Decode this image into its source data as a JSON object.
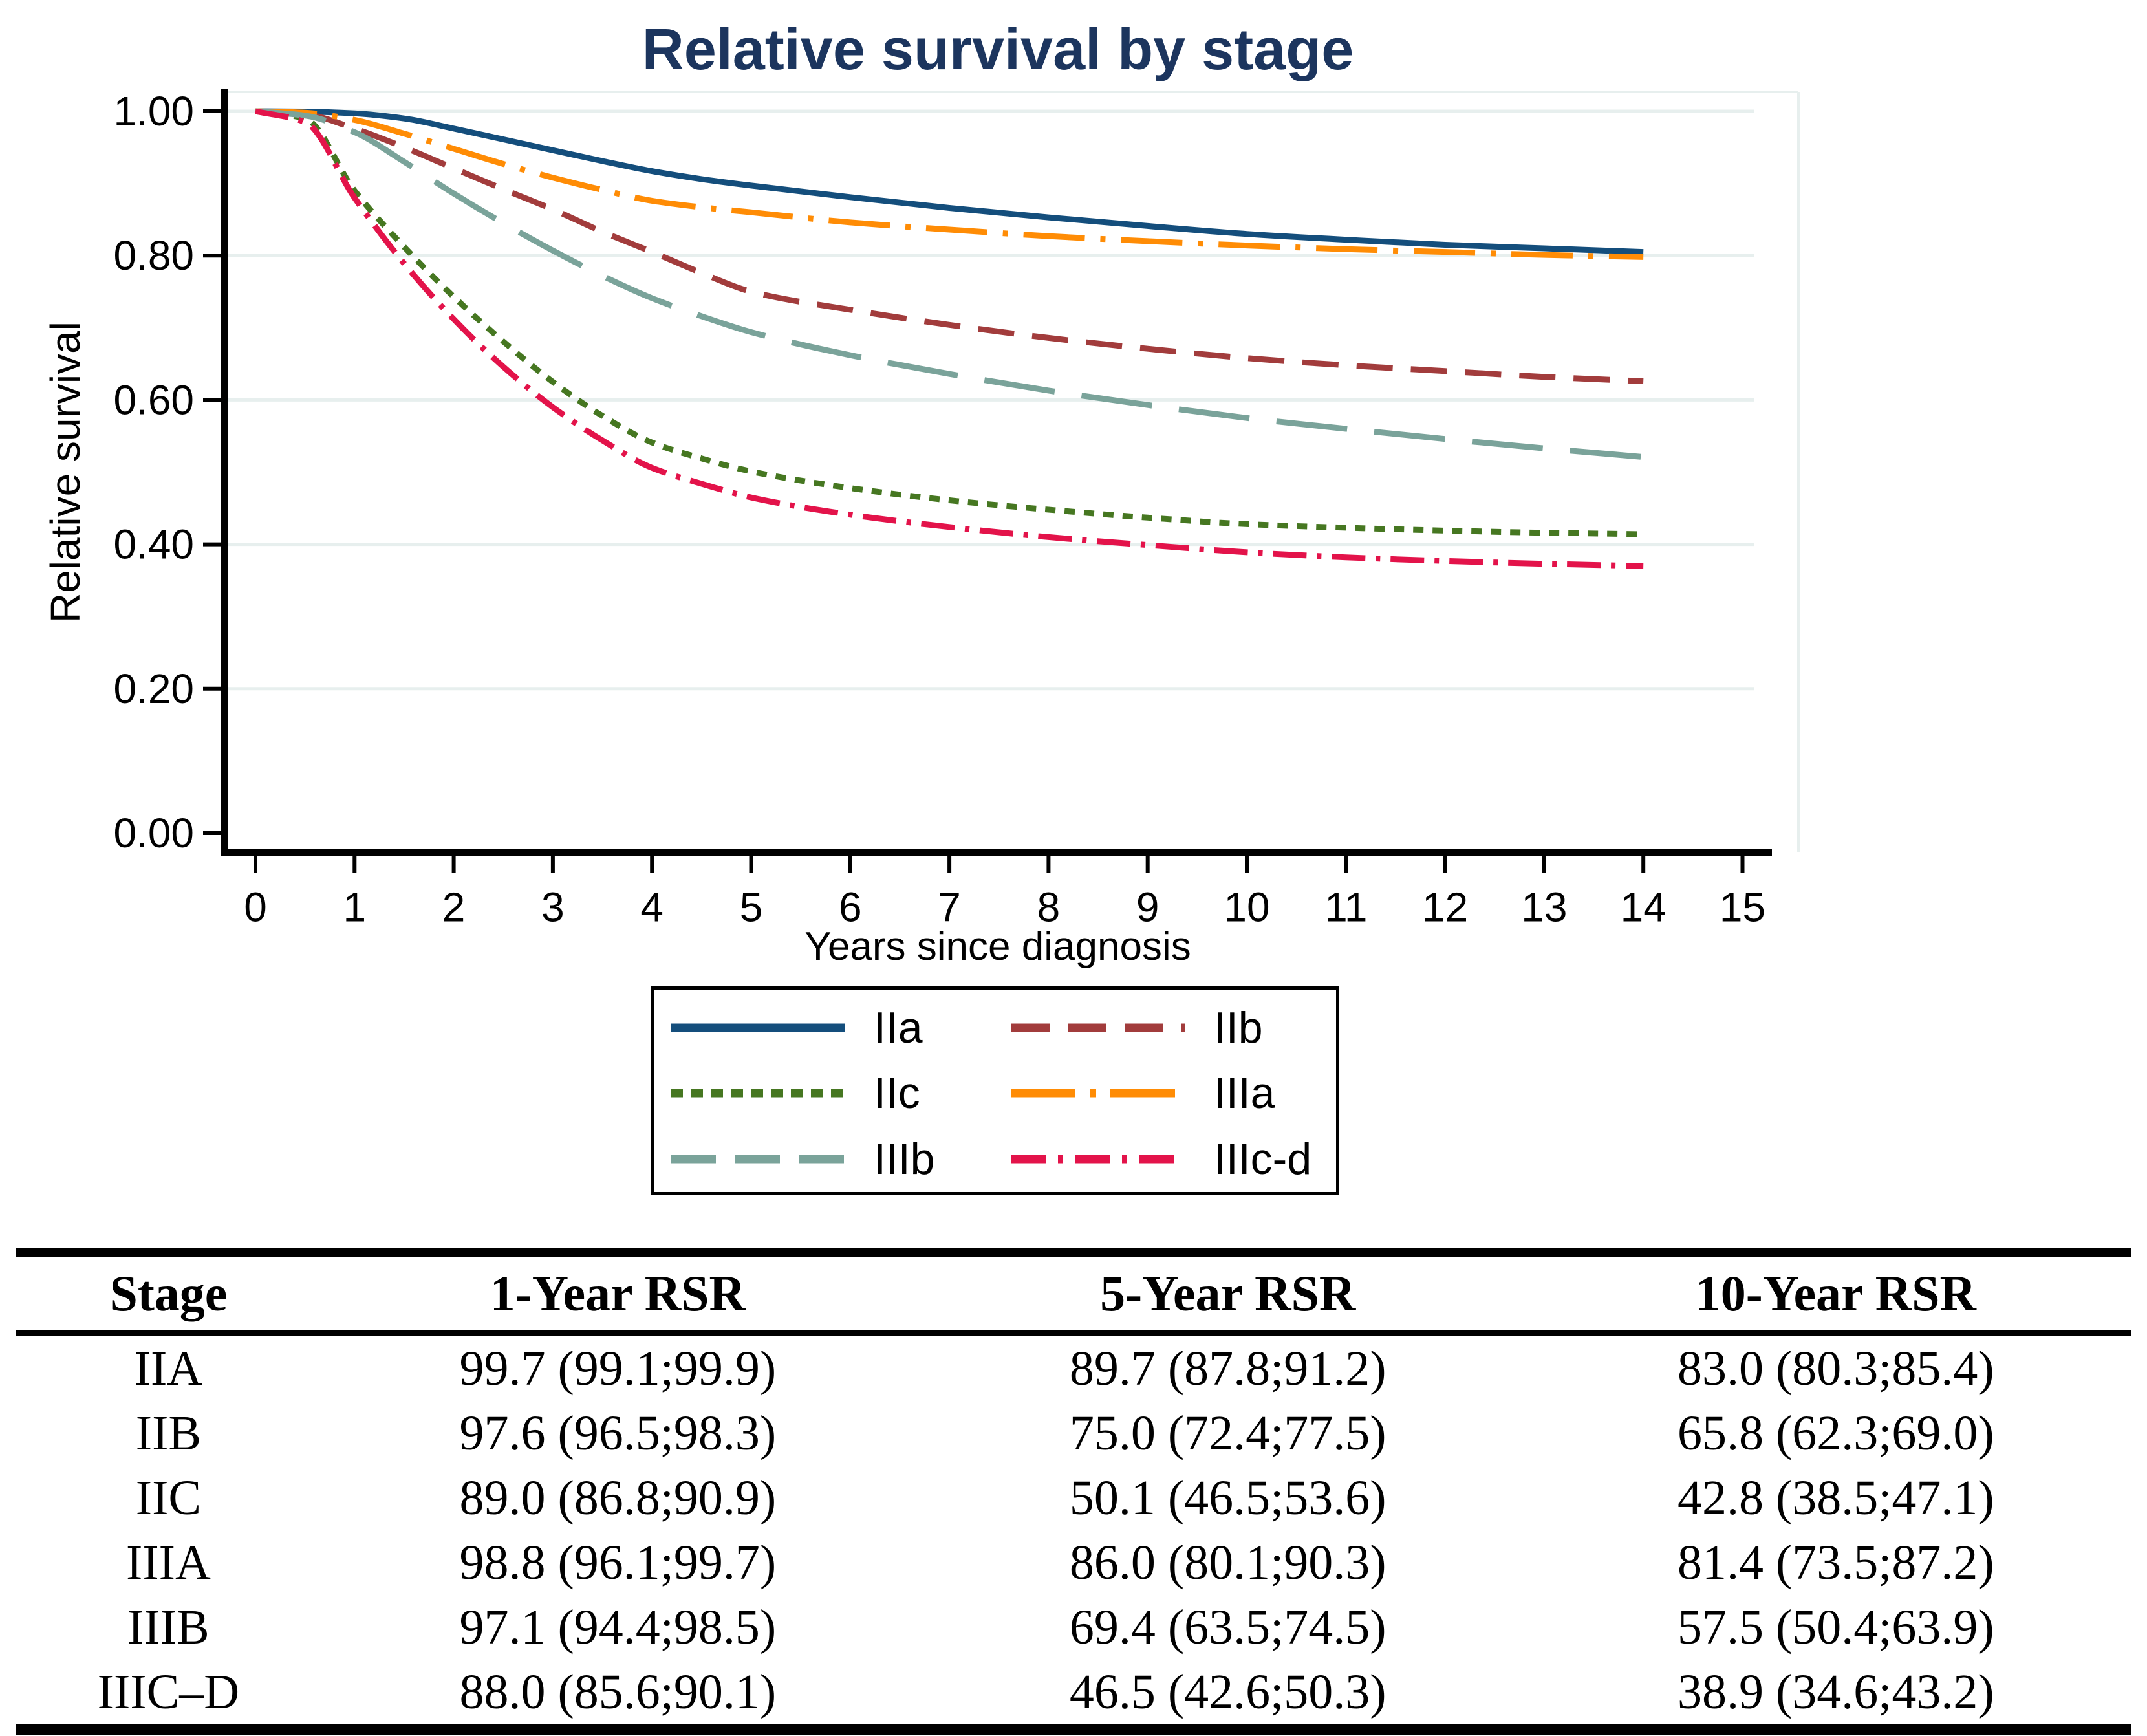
{
  "chart_data": {
    "type": "line",
    "title": "Relative survival by stage",
    "title_color": "#1c355e",
    "xlabel": "Years since diagnosis",
    "ylabel": "Relative survival",
    "xlim": [
      0,
      15
    ],
    "ylim": [
      0,
      1
    ],
    "grid": "horizontal",
    "grid_color": "#e7efee",
    "axis_color": "#000000",
    "x_ticks": [
      "0",
      "1",
      "2",
      "3",
      "4",
      "5",
      "6",
      "7",
      "8",
      "9",
      "10",
      "11",
      "12",
      "13",
      "14",
      "15"
    ],
    "y_ticks": [
      {
        "v": 0.0,
        "label": "0.00"
      },
      {
        "v": 0.2,
        "label": "0.20"
      },
      {
        "v": 0.4,
        "label": "0.40"
      },
      {
        "v": 0.6,
        "label": "0.60"
      },
      {
        "v": 0.8,
        "label": "0.80"
      },
      {
        "v": 1.0,
        "label": "1.00"
      }
    ],
    "x": [
      0,
      0.5,
      1,
      1.5,
      2,
      2.5,
      3,
      3.5,
      4,
      4.5,
      5,
      6,
      7,
      8,
      9,
      10,
      11,
      12,
      13,
      14
    ],
    "series": [
      {
        "name": "IIa",
        "color": "#144e7c",
        "dash": "solid",
        "y": [
          1.0,
          0.9995,
          0.997,
          0.99,
          0.976,
          0.961,
          0.946,
          0.931,
          0.917,
          0.906,
          0.897,
          0.881,
          0.866,
          0.853,
          0.841,
          0.83,
          0.822,
          0.815,
          0.81,
          0.805
        ]
      },
      {
        "name": "IIb",
        "color": "#a23c3c",
        "dash": "dash",
        "y": [
          1.0,
          0.996,
          0.976,
          0.95,
          0.921,
          0.892,
          0.864,
          0.833,
          0.805,
          0.776,
          0.75,
          0.725,
          0.704,
          0.686,
          0.671,
          0.658,
          0.648,
          0.64,
          0.632,
          0.626
        ]
      },
      {
        "name": "IIc",
        "color": "#467721",
        "dash": "dot",
        "y": [
          1.0,
          0.99,
          0.89,
          0.812,
          0.743,
          0.681,
          0.625,
          0.578,
          0.541,
          0.519,
          0.501,
          0.478,
          0.461,
          0.448,
          0.437,
          0.428,
          0.423,
          0.419,
          0.416,
          0.414
        ]
      },
      {
        "name": "IIIa",
        "color": "#ff8c05",
        "dash": "longdash-dot",
        "y": [
          1.0,
          0.998,
          0.988,
          0.969,
          0.948,
          0.927,
          0.908,
          0.891,
          0.876,
          0.867,
          0.86,
          0.846,
          0.836,
          0.827,
          0.82,
          0.814,
          0.809,
          0.805,
          0.801,
          0.798
        ]
      },
      {
        "name": "IIIb",
        "color": "#7aa39a",
        "dash": "longdash",
        "y": [
          1.0,
          0.994,
          0.971,
          0.93,
          0.886,
          0.845,
          0.807,
          0.772,
          0.741,
          0.716,
          0.694,
          0.662,
          0.636,
          0.613,
          0.593,
          0.575,
          0.56,
          0.546,
          0.533,
          0.521
        ]
      },
      {
        "name": "IIIc-d",
        "color": "#e3134a",
        "dash": "dash-dot",
        "y": [
          1.0,
          0.985,
          0.88,
          0.789,
          0.712,
          0.646,
          0.59,
          0.544,
          0.506,
          0.484,
          0.465,
          0.441,
          0.424,
          0.41,
          0.399,
          0.389,
          0.382,
          0.377,
          0.373,
          0.37
        ]
      }
    ],
    "legend": {
      "position": "below-plot",
      "rows": [
        [
          "IIa",
          "IIb"
        ],
        [
          "IIc",
          "IIIa"
        ],
        [
          "IIIb",
          "IIIc-d"
        ]
      ]
    }
  },
  "table": {
    "headers": [
      "Stage",
      "1-Year RSR",
      "5-Year RSR",
      "10-Year RSR"
    ],
    "rows": [
      [
        "IIA",
        "99.7 (99.1;99.9)",
        "89.7 (87.8;91.2)",
        "83.0 (80.3;85.4)"
      ],
      [
        "IIB",
        "97.6 (96.5;98.3)",
        "75.0 (72.4;77.5)",
        "65.8 (62.3;69.0)"
      ],
      [
        "IIC",
        "89.0 (86.8;90.9)",
        "50.1 (46.5;53.6)",
        "42.8 (38.5;47.1)"
      ],
      [
        "IIIA",
        "98.8 (96.1;99.7)",
        "86.0 (80.1;90.3)",
        "81.4 (73.5;87.2)"
      ],
      [
        "IIIB",
        "97.1 (94.4;98.5)",
        "69.4 (63.5;74.5)",
        "57.5 (50.4;63.9)"
      ],
      [
        "IIIC–D",
        "88.0 (85.6;90.1)",
        "46.5 (42.6;50.3)",
        "38.9 (34.6;43.2)"
      ]
    ]
  }
}
